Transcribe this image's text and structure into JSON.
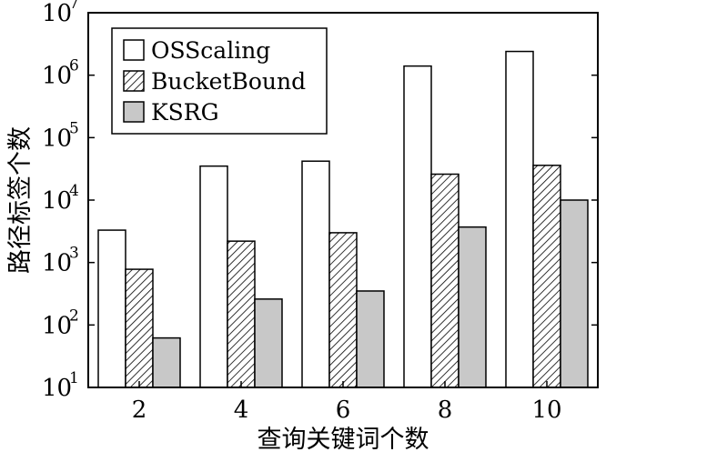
{
  "chart_data": {
    "type": "bar",
    "scale": "log",
    "xlabel": "查询关键词个数",
    "ylabel": "路径标签个数",
    "categories": [
      "2",
      "4",
      "6",
      "8",
      "10"
    ],
    "ylim": [
      10,
      10000000
    ],
    "yticks": [
      {
        "base": "10",
        "exp": "1"
      },
      {
        "base": "10",
        "exp": "2"
      },
      {
        "base": "10",
        "exp": "3"
      },
      {
        "base": "10",
        "exp": "4"
      },
      {
        "base": "10",
        "exp": "5"
      },
      {
        "base": "10",
        "exp": "6"
      },
      {
        "base": "10",
        "exp": "7"
      }
    ],
    "legend_position": "top-left",
    "series": [
      {
        "name": "OSScaling",
        "fill": "#ffffff",
        "pattern": "none",
        "values": [
          3300,
          35000,
          42000,
          1400000,
          2400000
        ]
      },
      {
        "name": "BucketBound",
        "fill": "#ffffff",
        "pattern": "diagonal-hatch",
        "values": [
          780,
          2200,
          3000,
          26000,
          36000
        ]
      },
      {
        "name": "KSRG",
        "fill": "#c8c8c8",
        "pattern": "none",
        "values": [
          62,
          260,
          350,
          3700,
          10000
        ]
      }
    ]
  }
}
